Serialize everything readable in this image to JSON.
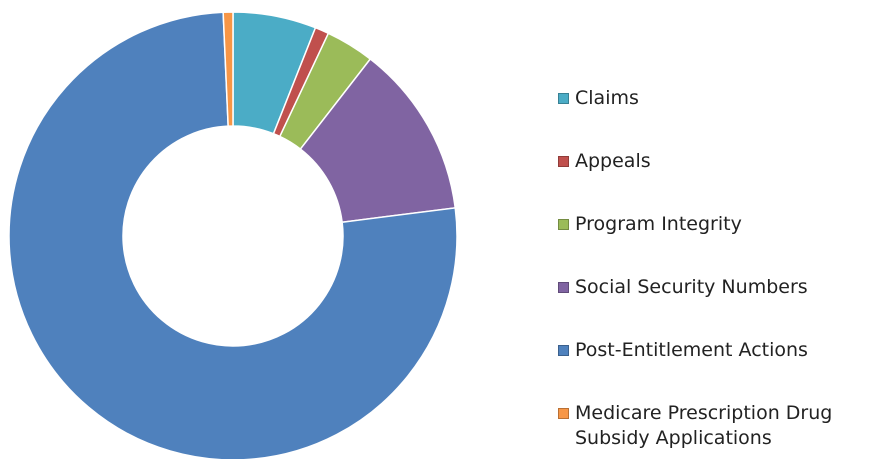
{
  "chart_data": {
    "type": "donut",
    "categories": [
      "Claims",
      "Appeals",
      "Program Integrity",
      "Social Security Numbers",
      "Post-Entitlement Actions",
      "Medicare Prescription Drug Subsidy Applications"
    ],
    "values": [
      6,
      1,
      3.5,
      12.5,
      76.3,
      0.7
    ],
    "colors": [
      "#4bacc6",
      "#c0504d",
      "#9bbb59",
      "#8064a2",
      "#4f81bd",
      "#f79646"
    ],
    "legend": "right"
  }
}
